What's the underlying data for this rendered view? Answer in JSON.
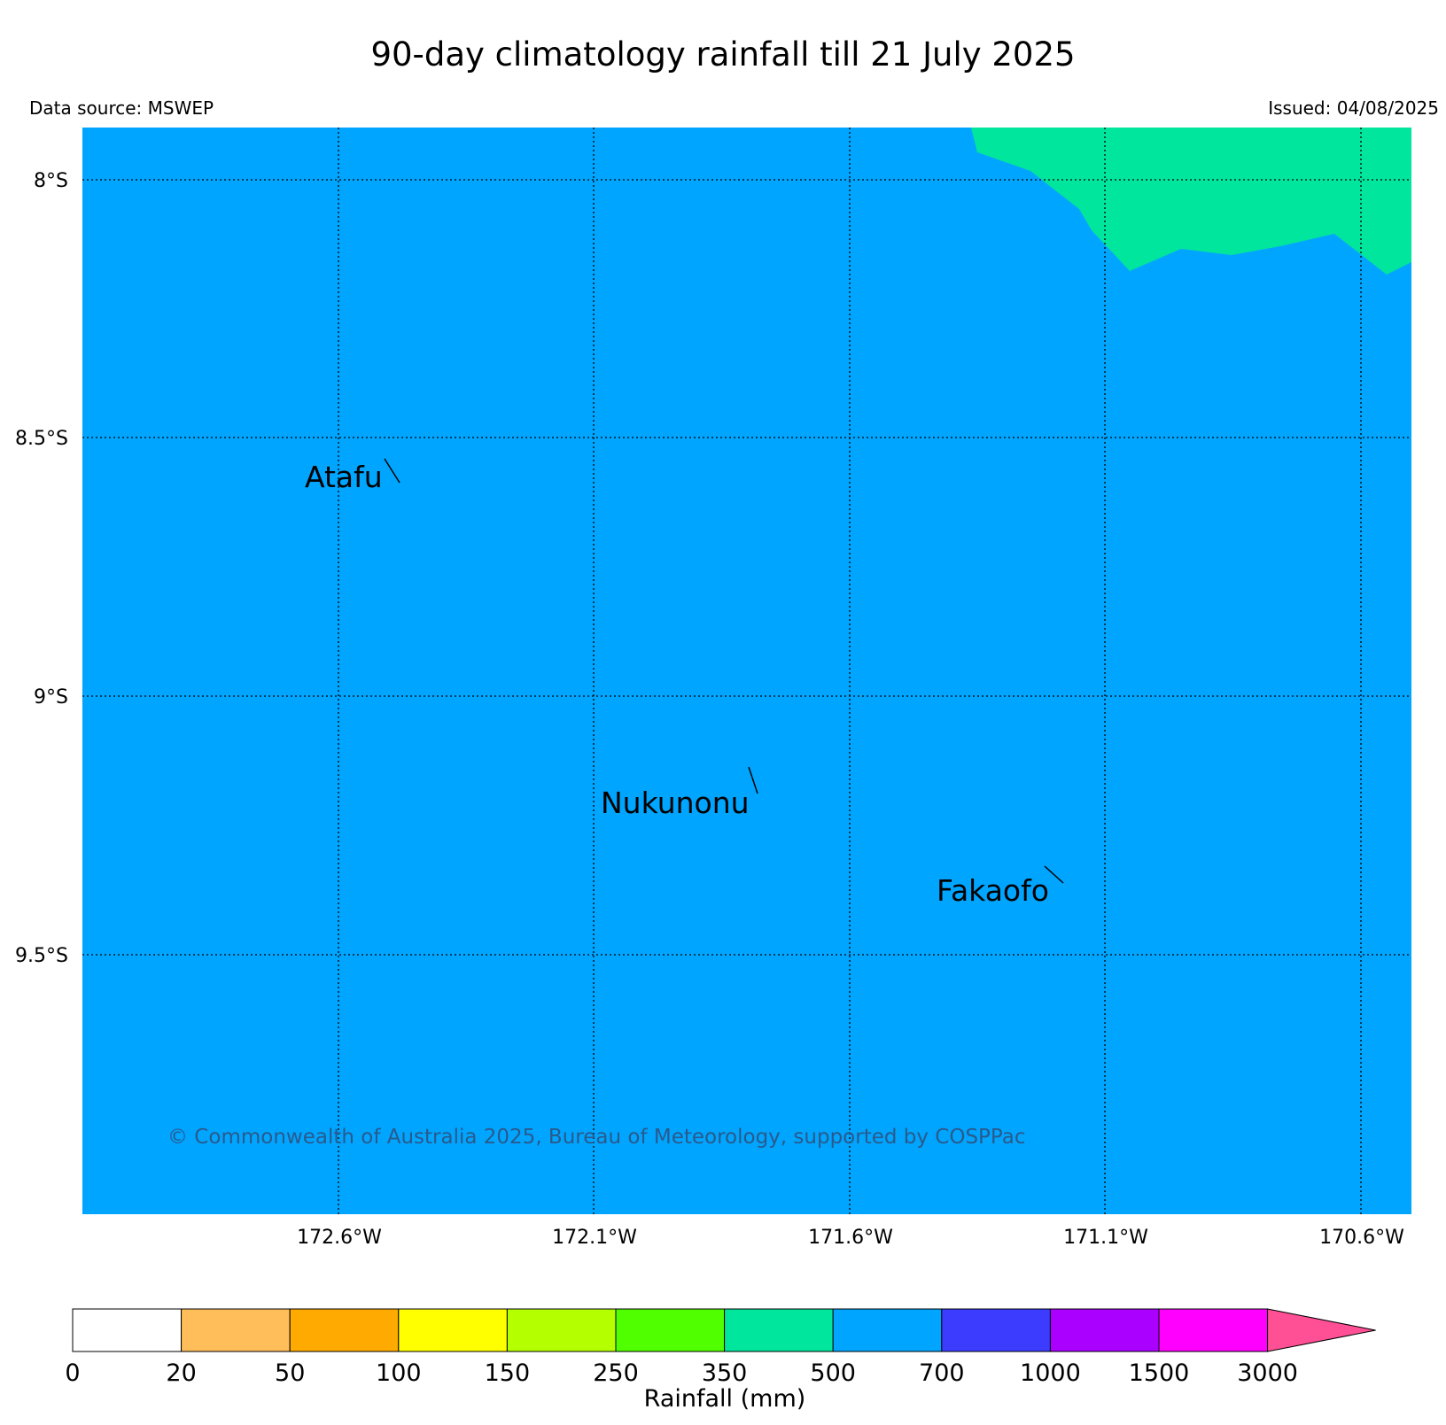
{
  "header": {
    "title": "90-day climatology rainfall till 21 July 2025",
    "data_source": "Data source: MSWEP",
    "issued": "Issued: 04/08/2025"
  },
  "map": {
    "ocean_color": "#00a5ff",
    "high_rain_color": "#00e69c",
    "lat_labels": [
      "8°S",
      "8.5°S",
      "9°S",
      "9.5°S"
    ],
    "lon_labels": [
      "172.6°W",
      "172.1°W",
      "171.6°W",
      "171.1°W",
      "170.6°W"
    ],
    "places": {
      "atafu": "Atafu",
      "nukunonu": "Nukunonu",
      "fakaofo": "Fakaofo"
    },
    "copyright": "© Commonwealth of Australia 2025, Bureau of Meteorology, supported by COSPPac"
  },
  "colorbar": {
    "title": "Rainfall (mm)",
    "tick_labels": [
      "0",
      "20",
      "50",
      "100",
      "150",
      "250",
      "350",
      "500",
      "700",
      "1000",
      "1500",
      "3000"
    ],
    "colors": [
      "#ffffff",
      "#ffbe5a",
      "#ffaa00",
      "#ffff00",
      "#b4ff00",
      "#50ff00",
      "#00e69c",
      "#00a5ff",
      "#3c3cff",
      "#aa00ff",
      "#ff00ff"
    ],
    "extend_color": "#ff5096"
  }
}
